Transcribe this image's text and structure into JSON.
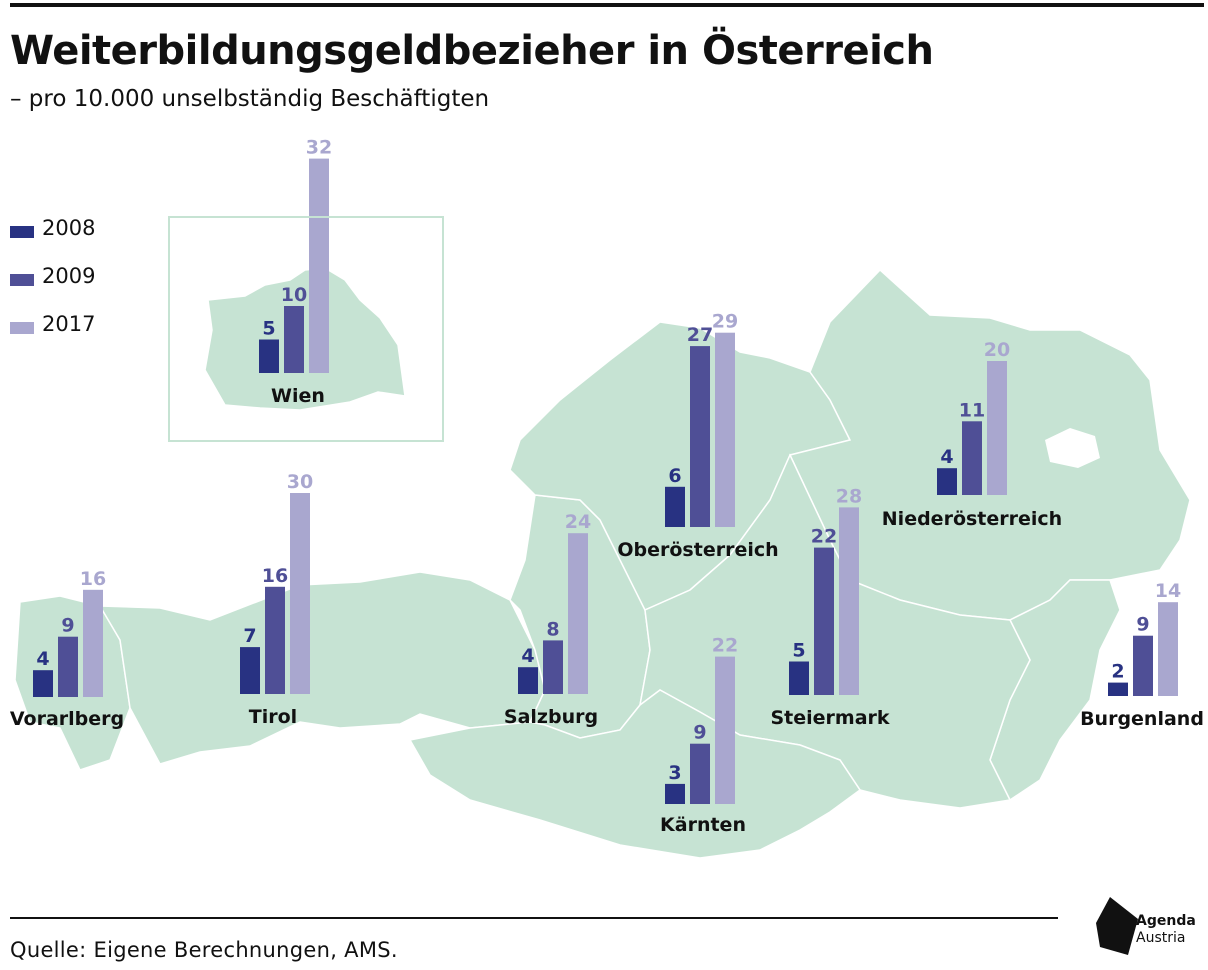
{
  "title": "Weiterbildungsgeldbezieher in Österreich",
  "subtitle": "– pro 10.000 unselbständig Beschäftigten",
  "source": "Quelle: Eigene Berechnungen, AMS.",
  "logo": {
    "line1": "Agenda",
    "line2": "Austria"
  },
  "colors": {
    "2008": "#283282",
    "2009": "#4f4f96",
    "2017": "#a9a7cf",
    "map": "#c6e3d3"
  },
  "chart_data": {
    "type": "bar",
    "series": [
      {
        "name": "2008",
        "color": "#283282"
      },
      {
        "name": "2009",
        "color": "#4f4f96"
      },
      {
        "name": "2017",
        "color": "#a9a7cf"
      }
    ],
    "regions": [
      {
        "name": "Wien",
        "values": [
          5,
          10,
          32
        ]
      },
      {
        "name": "Vorarlberg",
        "values": [
          4,
          9,
          16
        ]
      },
      {
        "name": "Tirol",
        "values": [
          7,
          16,
          30
        ]
      },
      {
        "name": "Salzburg",
        "values": [
          4,
          8,
          24
        ]
      },
      {
        "name": "Oberösterreich",
        "values": [
          6,
          27,
          29
        ]
      },
      {
        "name": "Kärnten",
        "values": [
          3,
          9,
          22
        ]
      },
      {
        "name": "Steiermark",
        "values": [
          5,
          22,
          28
        ]
      },
      {
        "name": "Niederösterreich",
        "values": [
          4,
          11,
          20
        ]
      },
      {
        "name": "Burgenland",
        "values": [
          2,
          9,
          14
        ]
      }
    ]
  }
}
